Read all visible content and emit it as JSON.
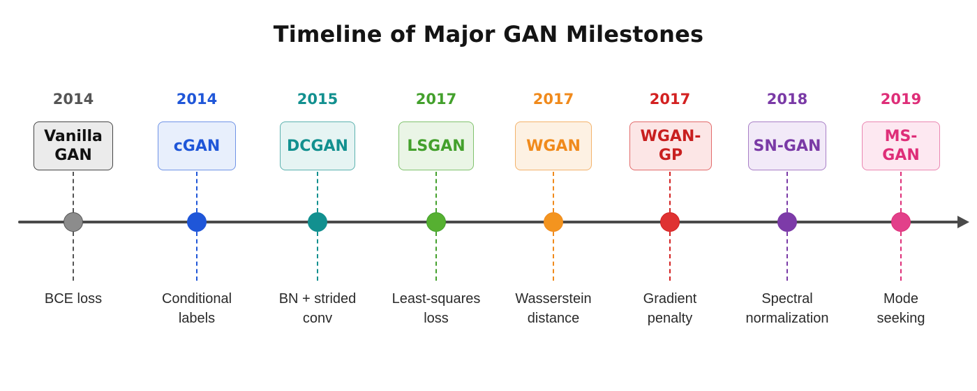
{
  "title": "Timeline of Major GAN Milestones",
  "axis_color": "#4a4a4a",
  "milestones": [
    {
      "year": "2014",
      "name": "Vanilla GAN",
      "name_lines": [
        "Vanilla",
        "GAN"
      ],
      "description_lines": [
        "BCE loss"
      ],
      "color": "#555555",
      "box_fill": "#ebebeb",
      "box_border": "#444444",
      "dot_color": "#8c8c8c",
      "name_color": "#111111"
    },
    {
      "year": "2014",
      "name": "cGAN",
      "name_lines": [
        "cGAN"
      ],
      "description_lines": [
        "Conditional",
        "labels"
      ],
      "color": "#1f56d8",
      "box_fill": "#e8effc",
      "box_border": "#6f93e6",
      "dot_color": "#1f56d8",
      "name_color": "#1f56d8"
    },
    {
      "year": "2015",
      "name": "DCGAN",
      "name_lines": [
        "DCGAN"
      ],
      "description_lines": [
        "BN + strided",
        "conv"
      ],
      "color": "#12908f",
      "box_fill": "#e6f4f3",
      "box_border": "#5bb1ae",
      "dot_color": "#12908f",
      "name_color": "#12908f"
    },
    {
      "year": "2017",
      "name": "LSGAN",
      "name_lines": [
        "LSGAN"
      ],
      "description_lines": [
        "Least-squares",
        "loss"
      ],
      "color": "#43a02c",
      "box_fill": "#eaf5e6",
      "box_border": "#80c26d",
      "dot_color": "#56b031",
      "name_color": "#43a02c"
    },
    {
      "year": "2017",
      "name": "WGAN",
      "name_lines": [
        "WGAN"
      ],
      "description_lines": [
        "Wasserstein",
        "distance"
      ],
      "color": "#f08a1c",
      "box_fill": "#fdf1e3",
      "box_border": "#f3b26a",
      "dot_color": "#f3941f",
      "name_color": "#f08a1c"
    },
    {
      "year": "2017",
      "name": "WGAN-GP",
      "name_lines": [
        "WGAN-GP"
      ],
      "description_lines": [
        "Gradient",
        "penalty"
      ],
      "color": "#d32121",
      "box_fill": "#fce6e6",
      "box_border": "#e26a6a",
      "dot_color": "#df3232",
      "name_color": "#c81f1f"
    },
    {
      "year": "2018",
      "name": "SN-GAN",
      "name_lines": [
        "SN-GAN"
      ],
      "description_lines": [
        "Spectral",
        "normalization"
      ],
      "color": "#7a3aa6",
      "box_fill": "#f2eaf8",
      "box_border": "#a77ec6",
      "dot_color": "#7d3ba8",
      "name_color": "#7a3aa6"
    },
    {
      "year": "2019",
      "name": "MS-GAN",
      "name_lines": [
        "MS-GAN"
      ],
      "description_lines": [
        "Mode",
        "seeking"
      ],
      "color": "#de2e78",
      "box_fill": "#fde8f1",
      "box_border": "#ea86b1",
      "dot_color": "#e2408a",
      "name_color": "#de2e78"
    }
  ]
}
